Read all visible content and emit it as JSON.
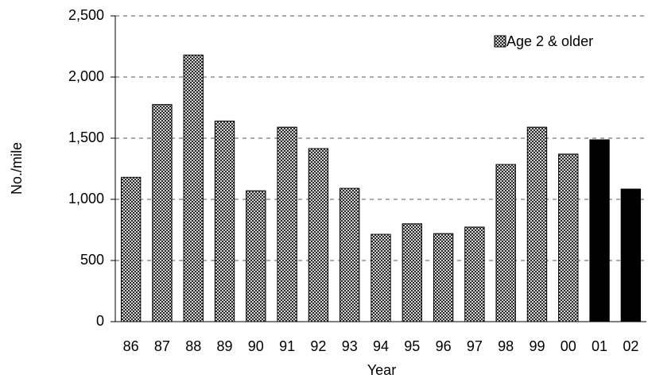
{
  "chart_data": {
    "type": "bar",
    "title": null,
    "x_label": "Year",
    "y_label": "No./mile",
    "categories": [
      "86",
      "87",
      "88",
      "89",
      "90",
      "91",
      "92",
      "93",
      "94",
      "95",
      "96",
      "97",
      "98",
      "99",
      "00",
      "01",
      "02"
    ],
    "series": [
      {
        "name": "Age 2 & older",
        "pattern": "crosshatch",
        "values": [
          1180,
          1775,
          2180,
          1640,
          1070,
          1590,
          1415,
          1090,
          714,
          800,
          720,
          773,
          1285,
          1590,
          1370,
          1487,
          1084
        ],
        "colors": [
          "crosshatch",
          "crosshatch",
          "crosshatch",
          "crosshatch",
          "crosshatch",
          "crosshatch",
          "crosshatch",
          "crosshatch",
          "crosshatch",
          "crosshatch",
          "crosshatch",
          "crosshatch",
          "crosshatch",
          "crosshatch",
          "crosshatch",
          "#000000",
          "#000000"
        ]
      }
    ],
    "ylim": [
      0,
      2500
    ],
    "yticks": [
      0,
      500,
      {
        "value": 1000,
        "label": "1,000"
      },
      {
        "value": 1500,
        "label": "1,500"
      },
      {
        "value": 2000,
        "label": "2,000"
      },
      {
        "value": 2500,
        "label": "2,500"
      }
    ],
    "grid": true,
    "legend": "upper right"
  }
}
